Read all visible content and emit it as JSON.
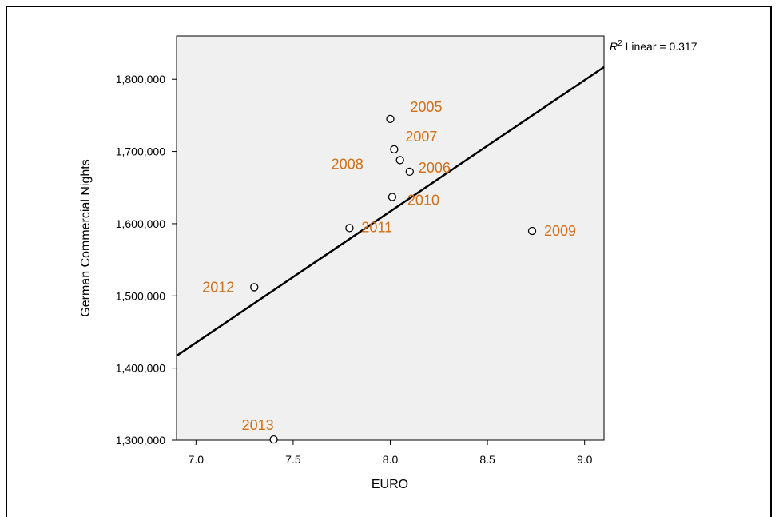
{
  "chart_data": {
    "type": "scatter",
    "xlabel": "EURO",
    "ylabel": "German Commercial Nights",
    "xlim": [
      6.9,
      9.1
    ],
    "ylim": [
      1300000,
      1860000
    ],
    "xticks": [
      7.0,
      7.5,
      8.0,
      8.5,
      9.0
    ],
    "xtick_labels": [
      "7.0",
      "7.5",
      "8.0",
      "8.5",
      "9.0"
    ],
    "yticks": [
      1300000,
      1400000,
      1500000,
      1600000,
      1700000,
      1800000
    ],
    "ytick_labels": [
      "1,300,000",
      "1,400,000",
      "1,500,000",
      "1,600,000",
      "1,700,000",
      "1,800,000"
    ],
    "points": [
      {
        "label": "2005",
        "x": 8.0,
        "y": 1745000
      },
      {
        "label": "2006",
        "x": 8.1,
        "y": 1672000
      },
      {
        "label": "2007",
        "x": 8.02,
        "y": 1703000
      },
      {
        "label": "2008",
        "x": 8.05,
        "y": 1688000
      },
      {
        "label": "2009",
        "x": 8.73,
        "y": 1590000
      },
      {
        "label": "2010",
        "x": 8.01,
        "y": 1637000
      },
      {
        "label": "2011",
        "x": 7.79,
        "y": 1594000
      },
      {
        "label": "2012",
        "x": 7.3,
        "y": 1512000
      },
      {
        "label": "2013",
        "x": 7.4,
        "y": 1301000
      }
    ],
    "fit_line": {
      "x": [
        6.9,
        9.1
      ],
      "y": [
        1417000,
        1817000
      ]
    },
    "annotation": {
      "r_symbol": "R",
      "sup": "2",
      "text": " Linear = 0.317"
    },
    "grid": false,
    "colors": {
      "plot_bg": "#f0f0f0",
      "label": "#d0701a",
      "marker_edge": "#000000",
      "line": "#000000"
    }
  }
}
